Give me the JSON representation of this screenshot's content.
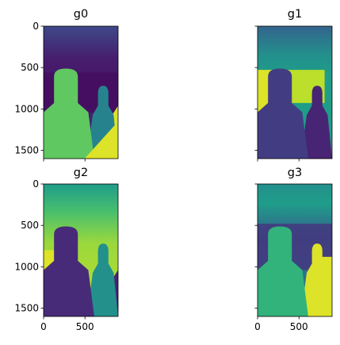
{
  "colormap": "viridis",
  "chart_data": [
    {
      "type": "heatmap",
      "title": "g0",
      "image_size": {
        "width": 900,
        "height": 1600
      },
      "xlim": [
        0,
        900
      ],
      "ylim": [
        1600,
        0
      ],
      "xticks": [],
      "yticks": [
        0,
        500,
        1000,
        1500
      ],
      "ytick_labels": [
        "0",
        "500",
        "1000",
        "1500"
      ],
      "background_level": 0.05,
      "depth_levels": {
        "top_band": 0.22,
        "sky_mid": 0.08,
        "person_head": 0.62,
        "person_body": 0.75,
        "bright_lower_right": 0.95,
        "second_person": 0.45
      }
    },
    {
      "type": "heatmap",
      "title": "g1",
      "image_size": {
        "width": 900,
        "height": 1600
      },
      "xlim": [
        0,
        900
      ],
      "ylim": [
        1600,
        0
      ],
      "xticks": [],
      "yticks": [],
      "depth_levels": {
        "top_band": 0.32,
        "mid_band": 0.55,
        "bright_region": 0.95,
        "person": 0.18,
        "second_person": 0.1
      }
    },
    {
      "type": "heatmap",
      "title": "g2",
      "image_size": {
        "width": 900,
        "height": 1600
      },
      "xlim": [
        0,
        900
      ],
      "ylim": [
        1600,
        0
      ],
      "xticks": [
        0,
        500
      ],
      "xtick_labels": [
        "0",
        "500"
      ],
      "yticks": [
        0,
        500,
        1000,
        1500
      ],
      "ytick_labels": [
        "0",
        "500",
        "1000",
        "1500"
      ],
      "depth_levels": {
        "top_band": 0.55,
        "mid_band": 0.85,
        "person": 0.12,
        "second_person": 0.5
      }
    },
    {
      "type": "heatmap",
      "title": "g3",
      "image_size": {
        "width": 900,
        "height": 1600
      },
      "xlim": [
        0,
        900
      ],
      "ylim": [
        1600,
        0
      ],
      "xticks": [
        0,
        500
      ],
      "xtick_labels": [
        "0",
        "500"
      ],
      "yticks": [],
      "depth_levels": {
        "top_band": 0.5,
        "mid_band": 0.3,
        "person": 0.65,
        "second_person": 0.95
      }
    }
  ]
}
